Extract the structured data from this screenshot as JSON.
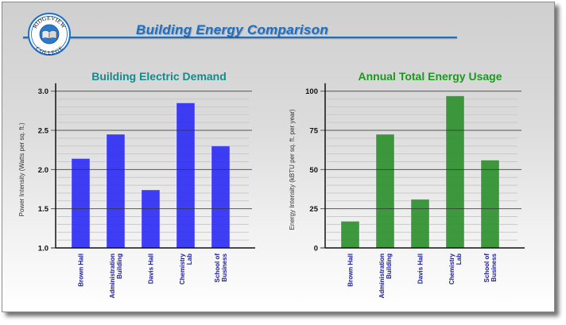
{
  "header": {
    "title": "Building Energy Comparison",
    "logo": {
      "top_text": "RIDGEVIEW",
      "bottom_text": "COLLEGE",
      "icon": "open-book-icon"
    },
    "accent_color": "#1a6fc9"
  },
  "chart_data": [
    {
      "type": "bar",
      "title": "Building Electric Demand",
      "title_color": "#168a8a",
      "bar_color": "#2a2af5",
      "categories": [
        [
          "Brown Hall"
        ],
        [
          "Administration",
          "Building"
        ],
        [
          "Davis Hall"
        ],
        [
          "Chemistry",
          "Lab"
        ],
        [
          "School of",
          "Business"
        ]
      ],
      "values": [
        2.14,
        2.45,
        1.74,
        2.85,
        2.3
      ],
      "xlabel": "",
      "ylabel": "Power Intensity    (Watts per sq. ft.)",
      "ylim": [
        1.0,
        3.0
      ],
      "yticks": [
        1.0,
        1.5,
        2.0,
        2.5,
        3.0
      ],
      "ytick_labels": [
        "1.0",
        "1.5",
        "2.0",
        "2.5",
        "3.0"
      ],
      "minor_step": 0.1,
      "grid": true,
      "legend": "none"
    },
    {
      "type": "bar",
      "title": "Annual Total Energy Usage",
      "title_color": "#1a9a1a",
      "bar_color": "#2a8f2a",
      "categories": [
        [
          "Brown Hall"
        ],
        [
          "Administration",
          "Building"
        ],
        [
          "Davis Hall"
        ],
        [
          "Chemistry",
          "Lab"
        ],
        [
          "School of",
          "Business"
        ]
      ],
      "values": [
        17,
        72.5,
        31,
        97,
        56
      ],
      "xlabel": "",
      "ylabel": "Energy Intensity    (kBTU per sq. ft. per year)",
      "ylim": [
        0,
        100
      ],
      "yticks": [
        0,
        25,
        50,
        75,
        100
      ],
      "ytick_labels": [
        "0",
        "25",
        "50",
        "75",
        "100"
      ],
      "minor_step": 5,
      "grid": true,
      "legend": "none"
    }
  ]
}
